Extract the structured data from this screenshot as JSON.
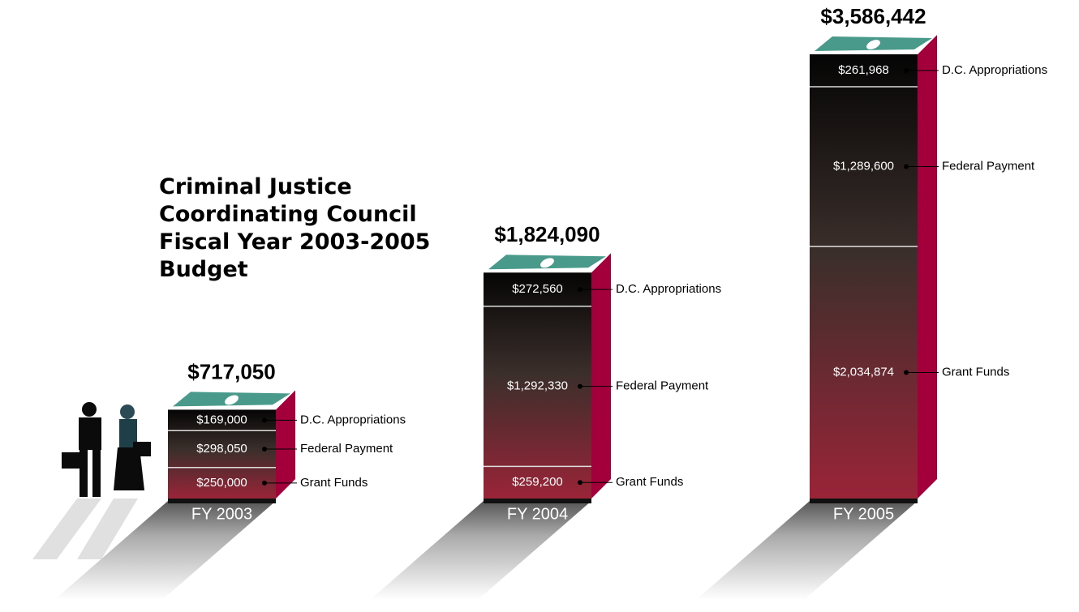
{
  "chart_data": {
    "type": "stacked-bar-3d",
    "title": "Criminal Justice Coordinating Council Fiscal Year 2003-2005 Budget",
    "categories": [
      "FY 2003",
      "FY 2004",
      "FY 2005"
    ],
    "series": [
      {
        "name": "Grant Funds",
        "values": [
          250000,
          259200,
          2034874
        ],
        "value_labels": [
          "$250,000",
          "$259,200",
          "$2,034,874"
        ]
      },
      {
        "name": "Federal Payment",
        "values": [
          298050,
          1292330,
          1289600
        ],
        "value_labels": [
          "$298,050",
          "$1,292,330",
          "$1,289,600"
        ]
      },
      {
        "name": "D.C. Appropriations",
        "values": [
          169000,
          272560,
          261968
        ],
        "value_labels": [
          "$169,000",
          "$272,560",
          "$261,968"
        ]
      }
    ],
    "totals": {
      "values": [
        717050,
        1824090,
        3586442
      ],
      "value_labels": [
        "$717,050",
        "$1,824,090",
        "$3,586,442"
      ]
    }
  }
}
